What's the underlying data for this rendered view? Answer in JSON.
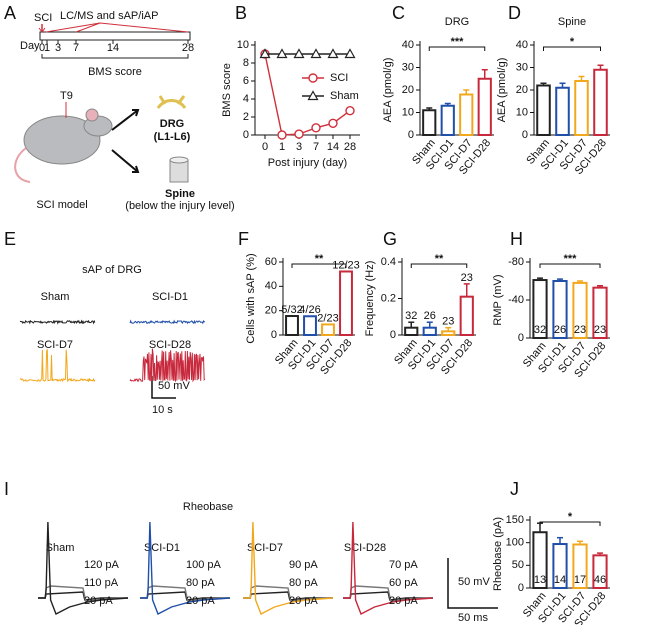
{
  "figure": {
    "panel_a": {
      "letter": "A",
      "sci": "SCI",
      "assay": "LC/MS and sAP/iAP",
      "day": "Day",
      "days": [
        "0",
        "1",
        "3",
        "7",
        "14",
        "28"
      ],
      "bms": "BMS score",
      "t9": "T9",
      "drg": "DRG",
      "drg_range": "(L1-L6)",
      "spine": "Spine",
      "spine_note": "(below the injury level)",
      "model": "SCI model"
    },
    "panel_e": {
      "letter": "E",
      "title": "sAP of DRG",
      "groups": [
        "Sham",
        "SCI-D1",
        "SCI-D7",
        "SCI-D28"
      ],
      "scale_v": "50 mV",
      "scale_t": "10 s"
    },
    "panel_i": {
      "letter": "I",
      "title": "Rheobase",
      "groups": [
        "Sham",
        "SCI-D1",
        "SCI-D7",
        "SCI-D28"
      ],
      "currents": [
        [
          "120 pA",
          "110 pA",
          "20 pA"
        ],
        [
          "100 pA",
          "80 pA",
          "20 pA"
        ],
        [
          "90 pA",
          "80 pA",
          "20 pA"
        ],
        [
          "70 pA",
          "60 pA",
          "20 pA"
        ]
      ],
      "scale_v": "50 mV",
      "scale_t": "50 ms"
    }
  },
  "chart_data": [
    {
      "panel": "B",
      "type": "line",
      "ylabel": "BMS score",
      "xlabel": "Post injury (day)",
      "categories": [
        "0",
        "1",
        "3",
        "7",
        "14",
        "28"
      ],
      "series": [
        {
          "name": "SCI",
          "color": "#d0303c",
          "marker": "circle",
          "values": [
            9,
            0,
            0.1,
            0.8,
            1.3,
            2.7
          ]
        },
        {
          "name": "Sham",
          "color": "#222222",
          "marker": "triangle",
          "values": [
            9,
            9,
            9,
            9,
            9,
            9
          ]
        }
      ],
      "ylim": [
        0,
        10
      ],
      "yticks": [
        0,
        2,
        4,
        6,
        8,
        10
      ],
      "legend": "center right"
    },
    {
      "panel": "C",
      "type": "bar",
      "title": "DRG",
      "ylabel": "AEA (pmol/g)",
      "categories": [
        "Sham",
        "SCI-D1",
        "SCI-D7",
        "SCI-D28"
      ],
      "values": [
        11,
        13,
        18,
        25
      ],
      "errors": [
        1,
        1,
        2,
        4
      ],
      "colors": [
        "#222222",
        "#1f4fa8",
        "#f2a81d",
        "#c8283c"
      ],
      "ylim": [
        0,
        40
      ],
      "yticks": [
        0,
        10,
        20,
        30,
        40
      ],
      "significance": "***"
    },
    {
      "panel": "D",
      "type": "bar",
      "title": "Spine",
      "ylabel": "AEA (pmol/g)",
      "categories": [
        "Sham",
        "SCI-D1",
        "SCI-D7",
        "SCI-D28"
      ],
      "values": [
        22,
        21,
        24,
        29
      ],
      "errors": [
        1,
        2,
        2,
        2
      ],
      "colors": [
        "#222222",
        "#1f4fa8",
        "#f2a81d",
        "#c8283c"
      ],
      "ylim": [
        0,
        40
      ],
      "yticks": [
        0,
        10,
        20,
        30,
        40
      ],
      "significance": "*"
    },
    {
      "panel": "F",
      "type": "bar",
      "ylabel": "Cells with sAP (%)",
      "categories": [
        "Sham",
        "SCI-D1",
        "SCI-D7",
        "SCI-D28"
      ],
      "values": [
        15.6,
        15.4,
        8.7,
        52.2
      ],
      "value_labels": [
        "5/32",
        "4/26",
        "2/23",
        "12/23"
      ],
      "colors": [
        "#222222",
        "#1f4fa8",
        "#f2a81d",
        "#c8283c"
      ],
      "ylim": [
        0,
        60
      ],
      "yticks": [
        0,
        20,
        40,
        60
      ],
      "significance": "**"
    },
    {
      "panel": "G",
      "type": "bar",
      "ylabel": "Frequency (Hz)",
      "categories": [
        "Sham",
        "SCI-D1",
        "SCI-D7",
        "SCI-D28"
      ],
      "values": [
        0.04,
        0.04,
        0.02,
        0.21
      ],
      "errors": [
        0.03,
        0.03,
        0.02,
        0.07
      ],
      "n": [
        32,
        26,
        23,
        23
      ],
      "colors": [
        "#222222",
        "#1f4fa8",
        "#f2a81d",
        "#c8283c"
      ],
      "ylim": [
        0,
        0.4
      ],
      "yticks": [
        0,
        0.2,
        0.4
      ],
      "significance": "**"
    },
    {
      "panel": "H",
      "type": "bar",
      "ylabel": "RMP (mV)",
      "categories": [
        "Sham",
        "SCI-D1",
        "SCI-D7",
        "SCI-D28"
      ],
      "values": [
        -61,
        -60,
        -58,
        -53
      ],
      "errors": [
        2,
        2,
        2,
        2
      ],
      "n": [
        32,
        26,
        23,
        23
      ],
      "colors": [
        "#222222",
        "#1f4fa8",
        "#f2a81d",
        "#c8283c"
      ],
      "ylim": [
        0,
        -80
      ],
      "yticks": [
        -80,
        -40,
        0
      ],
      "significance": "***"
    },
    {
      "panel": "J",
      "type": "bar",
      "ylabel": "Rheobase (pA)",
      "categories": [
        "Sham",
        "SCI-D1",
        "SCI-D7",
        "SCI-D28"
      ],
      "values": [
        123,
        97,
        96,
        72
      ],
      "errors": [
        20,
        14,
        7,
        5
      ],
      "n": [
        13,
        14,
        17,
        46
      ],
      "colors": [
        "#222222",
        "#1f4fa8",
        "#f2a81d",
        "#c8283c"
      ],
      "ylim": [
        0,
        150
      ],
      "yticks": [
        0,
        50,
        100,
        150
      ],
      "significance": "*"
    }
  ]
}
